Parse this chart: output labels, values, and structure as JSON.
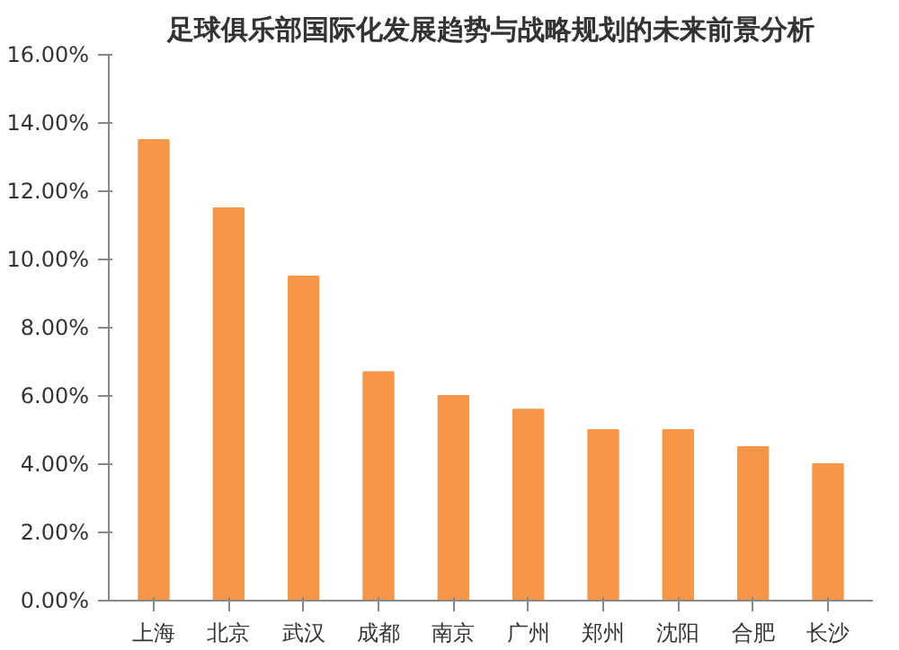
{
  "chart_data": {
    "type": "bar",
    "title": "足球俱乐部国际化发展趋势与战略规划的未来前景分析",
    "categories": [
      "上海",
      "北京",
      "武汉",
      "成都",
      "南京",
      "广州",
      "郑州",
      "沈阳",
      "合肥",
      "长沙"
    ],
    "values": [
      13.5,
      11.5,
      9.5,
      6.7,
      6.0,
      5.6,
      5.0,
      5.0,
      4.5,
      4.0
    ],
    "color": "#f79646",
    "ylim": [
      0,
      16
    ],
    "yticks": [
      {
        "value": 0,
        "label": "0.00%"
      },
      {
        "value": 2,
        "label": "2.00%"
      },
      {
        "value": 4,
        "label": "4.00%"
      },
      {
        "value": 6,
        "label": "6.00%"
      },
      {
        "value": 8,
        "label": "8.00%"
      },
      {
        "value": 10,
        "label": "10.00%"
      },
      {
        "value": 12,
        "label": "12.00%"
      },
      {
        "value": 14,
        "label": "14.00%"
      },
      {
        "value": 16,
        "label": "16.00%"
      }
    ],
    "grid": false
  }
}
